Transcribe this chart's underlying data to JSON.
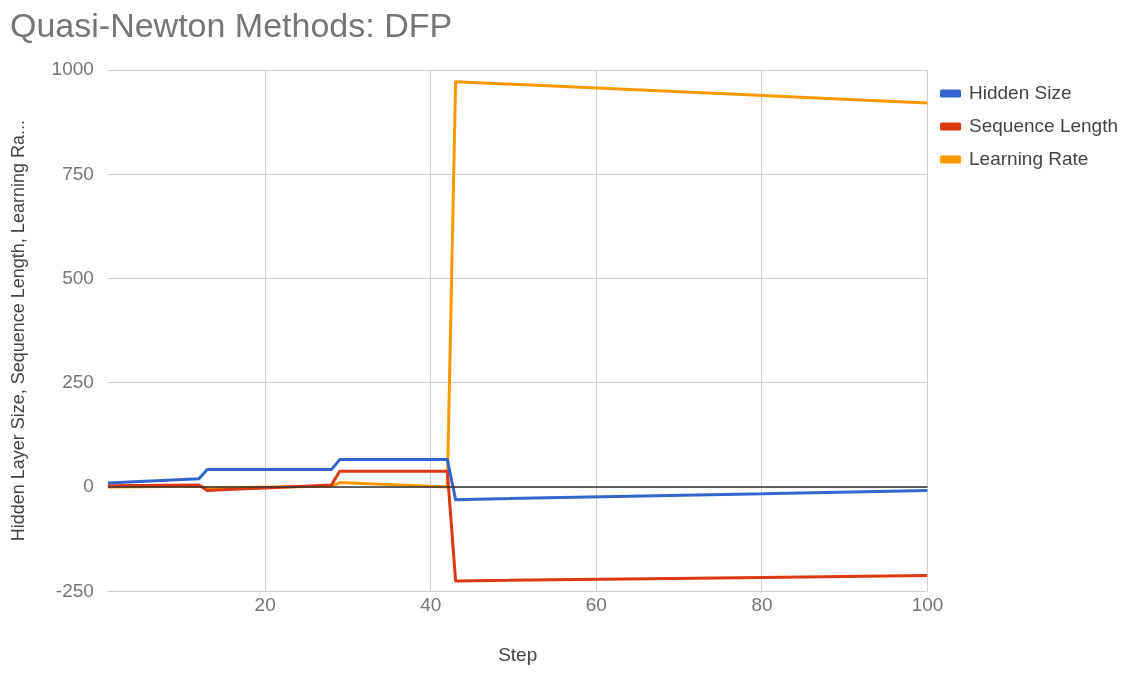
{
  "chart_data": {
    "type": "line",
    "title": "Quasi-Newton Methods: DFP",
    "xlabel": "Step",
    "ylabel": "Hidden Layer Size, Sequence Length, Learning Ra...",
    "xlim": [
      1,
      100
    ],
    "xticks": [
      20,
      40,
      60,
      80,
      100
    ],
    "ylim": [
      -250,
      1000
    ],
    "yticks": [
      -250,
      0,
      250,
      500,
      750,
      1000
    ],
    "grid": true,
    "legend": "top right",
    "marker": "none",
    "line_style": "solid",
    "ref_lines": [
      {
        "axis": "y",
        "value": 0,
        "color": "#333333"
      }
    ],
    "series": [
      {
        "name": "Hidden Size",
        "color": "#3366cc",
        "x": [
          1,
          12,
          13,
          28,
          29,
          42,
          43,
          100
        ],
        "values": [
          10,
          20,
          42,
          42,
          66,
          66,
          -30,
          -8
        ]
      },
      {
        "name": "Sequence Length",
        "color": "#dc3912",
        "x": [
          1,
          12,
          13,
          28,
          29,
          42,
          43,
          100
        ],
        "values": [
          3,
          5,
          -8,
          5,
          38,
          38,
          -225,
          -212
        ]
      },
      {
        "name": "Learning Rate",
        "color": "#ff9900",
        "x": [
          1,
          12,
          13,
          28,
          29,
          42,
          43,
          100
        ],
        "values": [
          0,
          2,
          -2,
          2,
          11,
          0,
          972,
          921
        ]
      }
    ]
  }
}
